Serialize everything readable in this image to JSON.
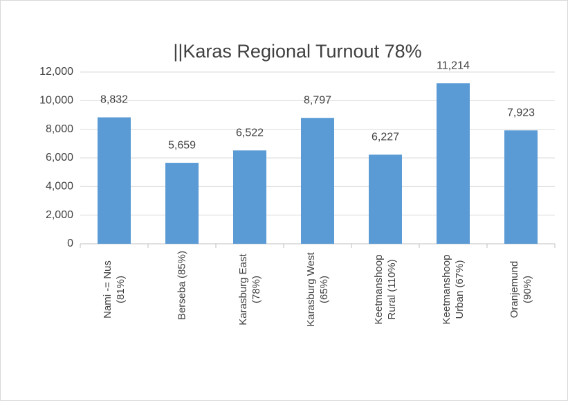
{
  "chart_data": {
    "type": "bar",
    "title": "||Karas Regional Turnout 78%",
    "categories": [
      "Nami -= Nus (81%)",
      "Berseba (85%)",
      "Karasburg East (78%)",
      "Karasburg West (65%)",
      "Keetmanshoop Rural (110%)",
      "Keetmanshoop Urban (67%)",
      "Oranjemund (90%)"
    ],
    "values": [
      8832,
      5659,
      6522,
      8797,
      6227,
      11214,
      7923
    ],
    "value_labels": [
      "8,832",
      "5,659",
      "6,522",
      "8,797",
      "6,227",
      "11,214",
      "7,923"
    ],
    "color": "#5b9bd5",
    "ylim": [
      0,
      12000
    ],
    "yticks": [
      0,
      {
        "value": 2000,
        "label": "2,000"
      },
      {
        "value": 4000,
        "label": "4,000"
      },
      {
        "value": 6000,
        "label": "6,000"
      },
      {
        "value": 8000,
        "label": "8,000"
      },
      {
        "value": 10000,
        "label": "10,000"
      },
      {
        "value": 12000,
        "label": "12,000"
      }
    ],
    "grid": true
  }
}
